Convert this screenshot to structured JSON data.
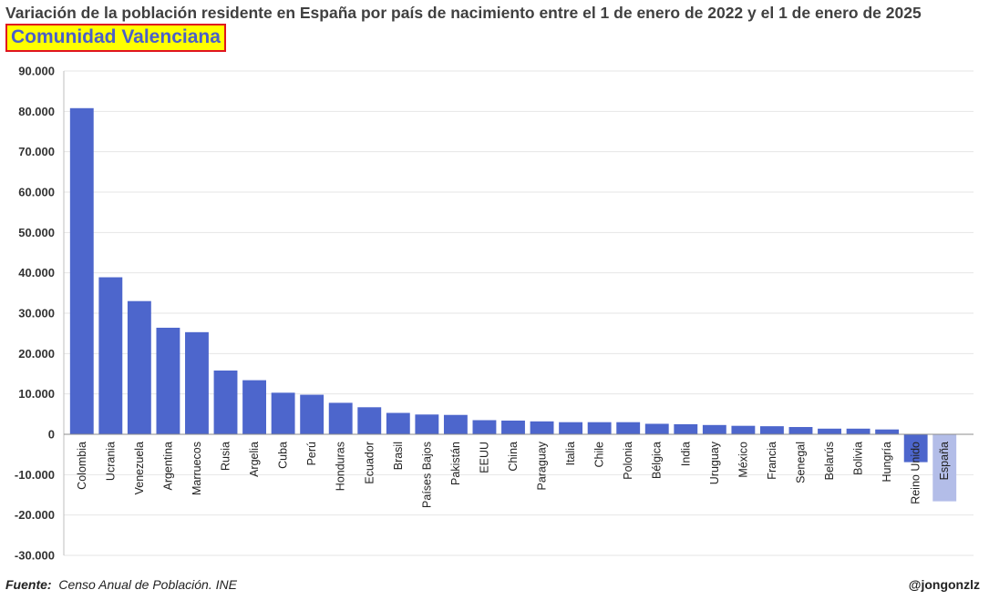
{
  "header": {
    "title": "Variación de la población residente en España por país de nacimiento entre el 1 de enero de 2022 y el 1 de enero de 2025",
    "region": "Comunidad Valenciana"
  },
  "footer": {
    "source_label": "Fuente:",
    "source_text": "Censo Anual de Población. INE",
    "credit": "@jongonzlz"
  },
  "colors": {
    "bar": "#4d66cc",
    "bar_highlight": "#b3bde8",
    "grid": "#e6e6e6",
    "title_text": "#404040",
    "region_bg": "#ffff00",
    "region_border": "#e0141e",
    "region_text": "#4a5fc9"
  },
  "chart_data": {
    "type": "bar",
    "title": "Variación de la población residente en España por país de nacimiento entre el 1 de enero de 2022 y el 1 de enero de 2025",
    "subtitle": "Comunidad Valenciana",
    "xlabel": "",
    "ylabel": "",
    "ylim": [
      -30000,
      90000
    ],
    "yticks": [
      90000,
      80000,
      70000,
      60000,
      50000,
      40000,
      30000,
      20000,
      10000,
      0,
      -10000,
      -20000,
      -30000
    ],
    "ytick_labels": [
      "90.000",
      "80.000",
      "70.000",
      "60.000",
      "50.000",
      "40.000",
      "30.000",
      "20.000",
      "10.000",
      "0",
      "-10.000",
      "-20.000",
      "-30.000"
    ],
    "grid": true,
    "legend": "none",
    "categories": [
      "Colombia",
      "Ucrania",
      "Venezuela",
      "Argentina",
      "Marruecos",
      "Rusia",
      "Argelia",
      "Cuba",
      "Perú",
      "Honduras",
      "Ecuador",
      "Brasil",
      "Países Bajos",
      "Pakistán",
      "EEUU",
      "China",
      "Paraguay",
      "Italia",
      "Chile",
      "Polonia",
      "Bélgica",
      "India",
      "Uruguay",
      "México",
      "Francia",
      "Senegal",
      "Belarús",
      "Bolivia",
      "Hungría",
      "Reino Unido",
      "España"
    ],
    "values": [
      80800,
      38900,
      33000,
      26400,
      25300,
      15800,
      13400,
      10300,
      9800,
      7800,
      6700,
      5300,
      4900,
      4800,
      3500,
      3400,
      3200,
      3000,
      3000,
      3000,
      2600,
      2500,
      2300,
      2100,
      2000,
      1800,
      1400,
      1400,
      1200,
      -6900,
      -16600
    ],
    "highlight": [
      "España"
    ]
  }
}
